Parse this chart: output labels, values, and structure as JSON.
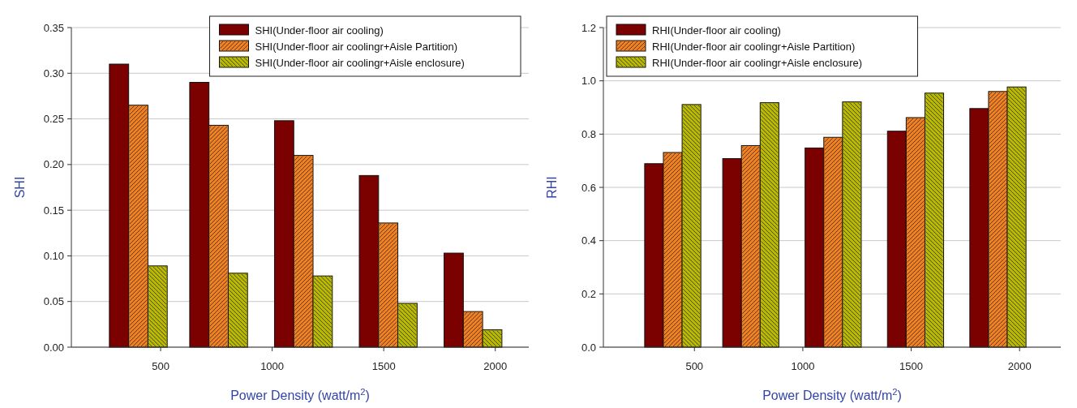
{
  "chart_data": [
    {
      "type": "bar",
      "xlabel": "Power Density (watt/m$^{2}$)",
      "ylabel": "SHI",
      "x": [
        400,
        760,
        1140,
        1520,
        1900
      ],
      "xlim": [
        100,
        2150
      ],
      "xticks": [
        500,
        1000,
        1500,
        2000
      ],
      "ylim": [
        0,
        0.35
      ],
      "yticks": [
        {
          "value": 0,
          "label": "0.00"
        },
        {
          "value": 0.05,
          "label": "0.05"
        },
        {
          "value": 0.1,
          "label": "0.10"
        },
        {
          "value": 0.15,
          "label": "0.15"
        },
        {
          "value": 0.2,
          "label": "0.20"
        },
        {
          "value": 0.25,
          "label": "0.25"
        },
        {
          "value": 0.3,
          "label": "0.30"
        },
        {
          "value": 0.35,
          "label": "0.35"
        }
      ],
      "grid": "y",
      "legend": "top right",
      "series": [
        {
          "name": "SHI(Under-floor air cooling)",
          "color": "#7b0000",
          "values": [
            0.31,
            0.29,
            0.248,
            0.188,
            0.103
          ]
        },
        {
          "name": "SHI(Under-floor air coolingr+Aisle Partition)",
          "color": "#f07f20",
          "values": [
            0.265,
            0.243,
            0.21,
            0.136,
            0.039
          ]
        },
        {
          "name": "SHI(Under-floor air coolingr+Aisle enclosure)",
          "color": "#b8b800",
          "values": [
            0.089,
            0.081,
            0.078,
            0.048,
            0.019
          ]
        }
      ]
    },
    {
      "type": "bar",
      "xlabel": "Power Density (watt/m$^{2}$)",
      "ylabel": "RHI",
      "x": [
        400,
        760,
        1140,
        1520,
        1900
      ],
      "xlim": [
        80,
        2190
      ],
      "xticks": [
        500,
        1000,
        1500,
        2000
      ],
      "ylim": [
        0,
        1.2
      ],
      "yticks": [
        {
          "value": 0,
          "label": "0.0"
        },
        {
          "value": 0.2,
          "label": "0.2"
        },
        {
          "value": 0.4,
          "label": "0.4"
        },
        {
          "value": 0.6,
          "label": "0.6"
        },
        {
          "value": 0.8,
          "label": "0.8"
        },
        {
          "value": 1,
          "label": "1.0"
        },
        {
          "value": 1.2,
          "label": "1.2"
        }
      ],
      "grid": "y",
      "legend": "top left",
      "series": [
        {
          "name": "RHI(Under-floor air cooling)",
          "color": "#7b0000",
          "values": [
            0.689,
            0.708,
            0.748,
            0.811,
            0.896
          ]
        },
        {
          "name": "RHI(Under-floor air coolingr+Aisle Partition)",
          "color": "#f07f20",
          "values": [
            0.731,
            0.757,
            0.788,
            0.862,
            0.96
          ]
        },
        {
          "name": "RHI(Under-floor air coolingr+Aisle enclosure)",
          "color": "#b8b800",
          "values": [
            0.911,
            0.918,
            0.921,
            0.954,
            0.977
          ]
        }
      ]
    }
  ]
}
